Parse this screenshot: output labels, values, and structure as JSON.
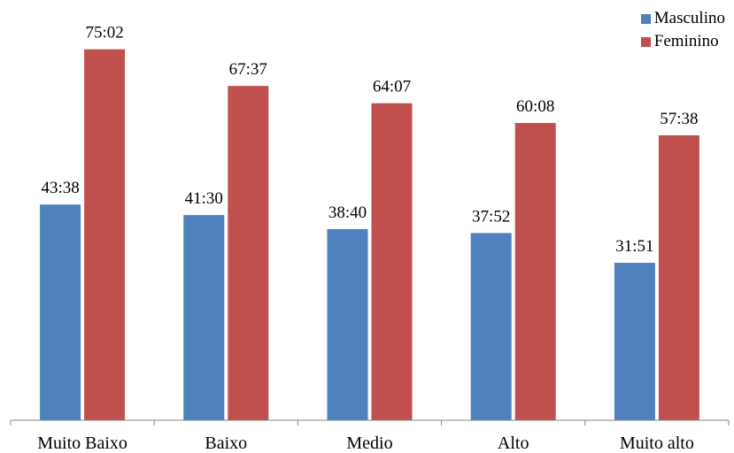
{
  "chart_data": {
    "type": "bar",
    "categories": [
      "Muito Baixo",
      "Baixo",
      "Medio",
      "Alto",
      "Muito alto"
    ],
    "series": [
      {
        "name": "Masculino",
        "color": "#4F81BD",
        "values": [
          43.633,
          41.5,
          38.667,
          37.867,
          31.85
        ],
        "labels": [
          "43:38",
          "41:30",
          "38:40",
          "37:52",
          "31:51"
        ]
      },
      {
        "name": "Feminino",
        "color": "#C0504D",
        "values": [
          75.033,
          67.617,
          64.117,
          60.133,
          57.633
        ],
        "labels": [
          "75:02",
          "67:37",
          "64:07",
          "60:08",
          "57:38"
        ]
      }
    ],
    "title": "",
    "xlabel": "",
    "ylabel": "",
    "ylim": [
      0,
      85
    ],
    "grid": false,
    "legend_position": "top-right"
  }
}
